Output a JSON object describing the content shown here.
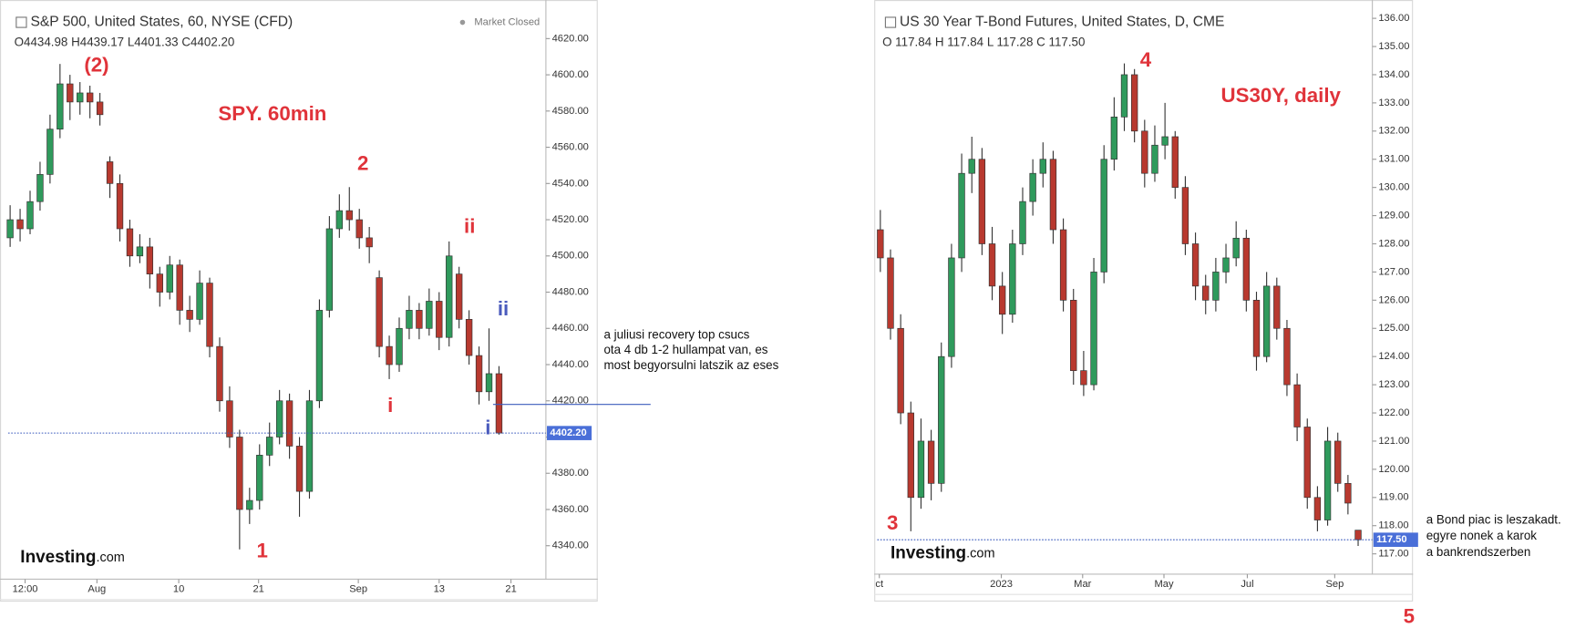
{
  "chart_data": [
    {
      "type": "candlestick",
      "title": "S&P 500, United States, 60, NYSE (CFD)",
      "legend_text": "O4434.98  H4439.17  L4401.33  C4402.20",
      "status": "Market Closed",
      "logo": [
        "Investing",
        ".com"
      ],
      "up_color": "#2f9a5c",
      "down_color": "#b8392f",
      "ohlc": [
        [
          4510,
          4528,
          4505,
          4520
        ],
        [
          4520,
          4526,
          4508,
          4515
        ],
        [
          4515,
          4536,
          4512,
          4530
        ],
        [
          4530,
          4552,
          4525,
          4545
        ],
        [
          4545,
          4578,
          4540,
          4570
        ],
        [
          4570,
          4606,
          4565,
          4595
        ],
        [
          4595,
          4600,
          4575,
          4585
        ],
        [
          4585,
          4596,
          4578,
          4590
        ],
        [
          4590,
          4594,
          4576,
          4585
        ],
        [
          4585,
          4590,
          4572,
          4578
        ],
        [
          4552,
          4555,
          4532,
          4540
        ],
        [
          4540,
          4545,
          4508,
          4515
        ],
        [
          4515,
          4520,
          4494,
          4500
        ],
        [
          4500,
          4512,
          4496,
          4505
        ],
        [
          4505,
          4510,
          4482,
          4490
        ],
        [
          4490,
          4494,
          4472,
          4480
        ],
        [
          4480,
          4500,
          4476,
          4495
        ],
        [
          4495,
          4498,
          4462,
          4470
        ],
        [
          4470,
          4478,
          4458,
          4465
        ],
        [
          4465,
          4492,
          4462,
          4485
        ],
        [
          4485,
          4488,
          4444,
          4450
        ],
        [
          4450,
          4455,
          4414,
          4420
        ],
        [
          4420,
          4428,
          4394,
          4400
        ],
        [
          4400,
          4404,
          4338,
          4360
        ],
        [
          4360,
          4372,
          4352,
          4365
        ],
        [
          4365,
          4396,
          4360,
          4390
        ],
        [
          4390,
          4408,
          4384,
          4400
        ],
        [
          4400,
          4426,
          4396,
          4420
        ],
        [
          4420,
          4424,
          4388,
          4395
        ],
        [
          4395,
          4400,
          4356,
          4370
        ],
        [
          4370,
          4426,
          4366,
          4420
        ],
        [
          4420,
          4476,
          4416,
          4470
        ],
        [
          4470,
          4522,
          4466,
          4515
        ],
        [
          4515,
          4534,
          4510,
          4525
        ],
        [
          4525,
          4538,
          4514,
          4520
        ],
        [
          4520,
          4526,
          4504,
          4510
        ],
        [
          4510,
          4516,
          4496,
          4505
        ],
        [
          4488,
          4492,
          4444,
          4450
        ],
        [
          4450,
          4456,
          4432,
          4440
        ],
        [
          4440,
          4466,
          4436,
          4460
        ],
        [
          4460,
          4478,
          4454,
          4470
        ],
        [
          4470,
          4474,
          4454,
          4460
        ],
        [
          4460,
          4482,
          4456,
          4475
        ],
        [
          4475,
          4480,
          4448,
          4455
        ],
        [
          4455,
          4508,
          4450,
          4500
        ],
        [
          4490,
          4494,
          4460,
          4465
        ],
        [
          4465,
          4470,
          4440,
          4445
        ],
        [
          4445,
          4450,
          4418,
          4425
        ],
        [
          4425,
          4460,
          4420,
          4435
        ],
        [
          4434.98,
          4439.17,
          4401.33,
          4402.2
        ]
      ],
      "xlim": [
        -0.2,
        53.7
      ],
      "xticks": [
        {
          "value": 1.5,
          "label": "12:00"
        },
        {
          "value": 8.7,
          "label": "Aug"
        },
        {
          "value": 16.9,
          "label": "10"
        },
        {
          "value": 24.9,
          "label": "21"
        },
        {
          "value": 34.9,
          "label": "Sep"
        },
        {
          "value": 43.0,
          "label": "13"
        },
        {
          "value": 50.2,
          "label": "21"
        }
      ],
      "ylim": [
        4321.5,
        4635.7
      ],
      "yticks": [
        {
          "value": 4340,
          "label": "4340.00"
        },
        {
          "value": 4360,
          "label": "4360.00"
        },
        {
          "value": 4380,
          "label": "4380.00"
        },
        {
          "value": 4400,
          "label": "4400.00"
        },
        {
          "value": 4420,
          "label": "4420.00"
        },
        {
          "value": 4440,
          "label": "4440.00"
        },
        {
          "value": 4460,
          "label": "4460.00"
        },
        {
          "value": 4480,
          "label": "4480.00"
        },
        {
          "value": 4500,
          "label": "4500.00"
        },
        {
          "value": 4520,
          "label": "4520.00"
        },
        {
          "value": 4540,
          "label": "4540.00"
        },
        {
          "value": 4560,
          "label": "4560.00"
        },
        {
          "value": 4580,
          "label": "4580.00"
        },
        {
          "value": 4600,
          "label": "4600.00"
        },
        {
          "value": 4620,
          "label": "4620.00"
        }
      ],
      "last_price": {
        "value": 4402.2,
        "label": "4402.20"
      },
      "annotations": [
        {
          "text": "(2)",
          "color": "#e0333a"
        },
        {
          "text": "SPY. 60min",
          "color": "#e0333a"
        },
        {
          "text": "2",
          "color": "#e0333a"
        },
        {
          "text": "ii",
          "color": "#e0333a"
        },
        {
          "text": "ii",
          "color": "#4a5bbd"
        },
        {
          "text": "i",
          "color": "#e0333a"
        },
        {
          "text": "i",
          "color": "#4a5bbd"
        },
        {
          "text": "1",
          "color": "#e0333a"
        }
      ],
      "note": [
        "a juliusi recovery top csucs",
        "ota 4 db 1-2 hullampat van, es",
        "most begyorsulni  latszik az eses"
      ]
    },
    {
      "type": "candlestick",
      "title": "US 30 Year T-Bond Futures, United States, D, CME",
      "legend_text": "O 117.84  H 117.84  L 117.28  C 117.50",
      "logo": [
        "Investing",
        ".com"
      ],
      "up_color": "#2f9a5c",
      "down_color": "#b8392f",
      "ohlc": [
        [
          128.5,
          129.2,
          127.0,
          127.5
        ],
        [
          127.5,
          127.8,
          124.6,
          125.0
        ],
        [
          125.0,
          125.5,
          121.6,
          122.0
        ],
        [
          122.0,
          122.4,
          117.8,
          119.0
        ],
        [
          119.0,
          121.8,
          118.6,
          121.0
        ],
        [
          121.0,
          121.4,
          118.9,
          119.5
        ],
        [
          119.5,
          124.5,
          119.2,
          124.0
        ],
        [
          124.0,
          128.0,
          123.6,
          127.5
        ],
        [
          127.5,
          131.2,
          127.0,
          130.5
        ],
        [
          130.5,
          131.8,
          129.8,
          131.0
        ],
        [
          131.0,
          131.4,
          127.6,
          128.0
        ],
        [
          128.0,
          128.6,
          126.0,
          126.5
        ],
        [
          126.5,
          127.0,
          124.8,
          125.5
        ],
        [
          125.5,
          128.5,
          125.2,
          128.0
        ],
        [
          128.0,
          130.0,
          127.6,
          129.5
        ],
        [
          129.5,
          131.0,
          129.0,
          130.5
        ],
        [
          130.5,
          131.6,
          130.0,
          131.0
        ],
        [
          131.0,
          131.3,
          128.0,
          128.5
        ],
        [
          128.5,
          128.9,
          125.6,
          126.0
        ],
        [
          126.0,
          126.4,
          123.0,
          123.5
        ],
        [
          123.5,
          124.2,
          122.6,
          123.0
        ],
        [
          123.0,
          127.5,
          122.8,
          127.0
        ],
        [
          127.0,
          131.5,
          126.6,
          131.0
        ],
        [
          131.0,
          133.2,
          130.6,
          132.5
        ],
        [
          132.5,
          134.4,
          132.0,
          134.0
        ],
        [
          134.0,
          134.2,
          131.6,
          132.0
        ],
        [
          132.0,
          132.4,
          130.0,
          130.5
        ],
        [
          130.5,
          132.2,
          130.2,
          131.5
        ],
        [
          131.5,
          133.0,
          131.0,
          131.8
        ],
        [
          131.8,
          132.0,
          129.6,
          130.0
        ],
        [
          130.0,
          130.4,
          127.6,
          128.0
        ],
        [
          128.0,
          128.4,
          126.0,
          126.5
        ],
        [
          126.5,
          126.9,
          125.5,
          126.0
        ],
        [
          126.0,
          127.5,
          125.6,
          127.0
        ],
        [
          127.0,
          128.0,
          126.6,
          127.5
        ],
        [
          127.5,
          128.8,
          127.2,
          128.2
        ],
        [
          128.2,
          128.5,
          125.6,
          126.0
        ],
        [
          126.0,
          126.3,
          123.5,
          124.0
        ],
        [
          124.0,
          127.0,
          123.8,
          126.5
        ],
        [
          126.5,
          126.8,
          124.6,
          125.0
        ],
        [
          125.0,
          125.3,
          122.6,
          123.0
        ],
        [
          123.0,
          123.4,
          121.0,
          121.5
        ],
        [
          121.5,
          121.8,
          118.6,
          119.0
        ],
        [
          119.0,
          119.4,
          117.8,
          118.2
        ],
        [
          118.2,
          121.5,
          118.0,
          121.0
        ],
        [
          121.0,
          121.3,
          119.2,
          119.5
        ],
        [
          119.5,
          119.8,
          118.4,
          118.8
        ],
        [
          117.84,
          117.84,
          117.28,
          117.5
        ]
      ],
      "xlim": [
        -0.3,
        48.4
      ],
      "xticks": [
        {
          "value": -0.1,
          "label": "ct"
        },
        {
          "value": 11.9,
          "label": "2023"
        },
        {
          "value": 19.9,
          "label": "Mar"
        },
        {
          "value": 27.9,
          "label": "May"
        },
        {
          "value": 36.1,
          "label": "Jul"
        },
        {
          "value": 44.7,
          "label": "Sep"
        }
      ],
      "ylim": [
        116.28,
        136.47
      ],
      "yticks": [
        {
          "value": 117,
          "label": "117.00"
        },
        {
          "value": 118,
          "label": "118.00"
        },
        {
          "value": 119,
          "label": "119.00"
        },
        {
          "value": 120,
          "label": "120.00"
        },
        {
          "value": 121,
          "label": "121.00"
        },
        {
          "value": 122,
          "label": "122.00"
        },
        {
          "value": 123,
          "label": "123.00"
        },
        {
          "value": 124,
          "label": "124.00"
        },
        {
          "value": 125,
          "label": "125.00"
        },
        {
          "value": 126,
          "label": "126.00"
        },
        {
          "value": 127,
          "label": "127.00"
        },
        {
          "value": 128,
          "label": "128.00"
        },
        {
          "value": 129,
          "label": "129.00"
        },
        {
          "value": 130,
          "label": "130.00"
        },
        {
          "value": 131,
          "label": "131.00"
        },
        {
          "value": 132,
          "label": "132.00"
        },
        {
          "value": 133,
          "label": "133.00"
        },
        {
          "value": 134,
          "label": "134.00"
        },
        {
          "value": 135,
          "label": "135.00"
        },
        {
          "value": 136,
          "label": "136.00"
        }
      ],
      "last_price": {
        "value": 117.5,
        "label": "117.50"
      },
      "annotations": [
        {
          "text": "3",
          "color": "#e0333a"
        },
        {
          "text": "4",
          "color": "#e0333a"
        },
        {
          "text": "US30Y, daily",
          "color": "#e0333a"
        },
        {
          "text": "5",
          "color": "#e0333a"
        }
      ],
      "note": [
        "a Bond piac is leszakadt.",
        "egyre nonek a karok",
        "a bankrendszerben"
      ]
    }
  ]
}
